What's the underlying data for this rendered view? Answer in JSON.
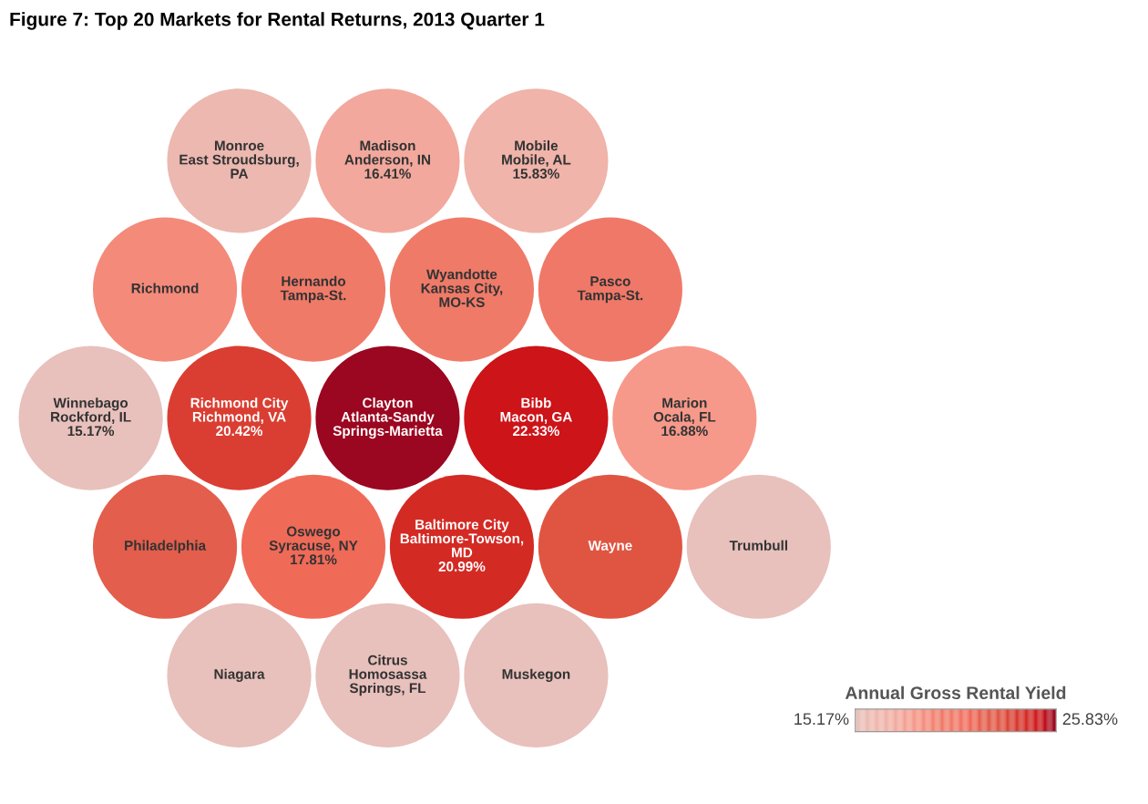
{
  "chart_data": {
    "type": "other",
    "title": "Figure 7: Top 20 Markets for Rental Returns, 2013 Quarter 1",
    "categories": [
      "Clayton\nAtlanta-Sandy\nSprings-Marietta",
      "Bibb\nMacon, GA",
      "Richmond City\nRichmond, VA",
      "Baltimore City\nBaltimore-Towson,\nMD",
      "Oswego\nSyracuse, NY",
      "Wyandotte\nKansas City,\nMO-KS",
      "Hernando\nTampa-St.",
      "Wayne",
      "Philadelphia",
      "Pasco\nTampa-St.",
      "Richmond",
      "Marion\nOcala, FL",
      "Winnebago\nRockford, IL",
      "Citrus\nHomosassa\nSprings, FL",
      "Madison\nAnderson, IN",
      "Muskegon",
      "Niagara",
      "Mobile\nMobile, AL",
      "Monroe\nEast Stroudsburg,\nPA",
      "Trumbull"
    ],
    "values": [
      null,
      22.33,
      20.42,
      20.99,
      17.81,
      null,
      null,
      null,
      null,
      null,
      null,
      16.88,
      15.17,
      null,
      16.41,
      null,
      null,
      15.83,
      null,
      null
    ],
    "value_labels": [
      null,
      "22.33%",
      "20.42%",
      "20.99%",
      "17.81%",
      null,
      null,
      null,
      null,
      null,
      null,
      "16.88%",
      "15.17%",
      null,
      "16.41%",
      null,
      null,
      "15.83%",
      null,
      null
    ],
    "colors": [
      "#9b0620",
      "#cc1419",
      "#da3e32",
      "#d42a24",
      "#f06a58",
      "#f07a68",
      "#f07a68",
      "#e05542",
      "#e35e4c",
      "#f07868",
      "#f48a7a",
      "#f6998a",
      "#e8c0bc",
      "#e8c0bc",
      "#f2a89c",
      "#e8c0bc",
      "#e8c0bc",
      "#f0b4aa",
      "#ecb8b0",
      "#e8c0bc"
    ],
    "clabel": "Annual Gross Rental Yield",
    "annotations": [
      "15.17%",
      "25.83%"
    ]
  }
}
